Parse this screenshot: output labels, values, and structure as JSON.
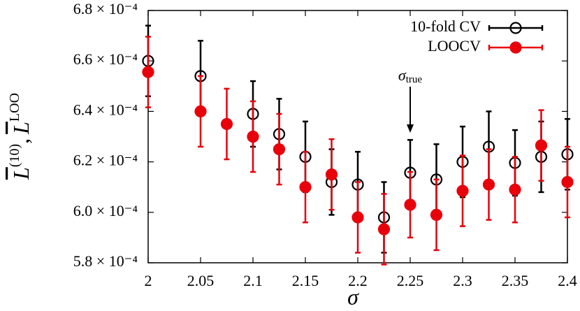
{
  "chart_data": {
    "type": "errorbar",
    "xlabel": "σ",
    "ylabel": {
      "first": "L",
      "first_sup": "(10)",
      "sep": ",",
      "second": "L",
      "second_sup": "LOO"
    },
    "xlim": [
      2,
      2.4
    ],
    "xticks": [
      2,
      2.05,
      2.1,
      2.15,
      2.2,
      2.25,
      2.3,
      2.35,
      2.4
    ],
    "ylim": [
      0.00058,
      0.00068
    ],
    "yticks": [
      {
        "value": 0.00058,
        "label": "5.8 × 10⁻⁴"
      },
      {
        "value": 0.0006,
        "label": "6.0 × 10⁻⁴"
      },
      {
        "value": 0.00062,
        "label": "6.2 × 10⁻⁴"
      },
      {
        "value": 0.00064,
        "label": "6.4 × 10⁻⁴"
      },
      {
        "value": 0.00066,
        "label": "6.6 × 10⁻⁴"
      },
      {
        "value": 0.00068,
        "label": "6.8 × 10⁻⁴"
      }
    ],
    "legend": "upper right",
    "annotation": {
      "text": "σ",
      "sub": "true",
      "x": 2.25
    },
    "series": [
      {
        "name": "10-fold CV",
        "color": "#000000",
        "marker": "open",
        "x": [
          2,
          2.05,
          2.1,
          2.125,
          2.15,
          2.175,
          2.2,
          2.225,
          2.25,
          2.275,
          2.3,
          2.325,
          2.35,
          2.375,
          2.4
        ],
        "values": [
          0.00066,
          0.000654,
          0.000639,
          0.000631,
          0.000622,
          0.000612,
          0.000611,
          0.000598,
          0.0006157,
          0.000613,
          0.00062,
          0.000626,
          0.0006196,
          0.000622,
          0.000623
        ],
        "errors": [
          1.4e-05,
          1.4e-05,
          1.3e-05,
          1.4e-05,
          1.4e-05,
          1.3e-05,
          1.3e-05,
          1.4e-05,
          1.3e-05,
          1.4e-05,
          1.4e-05,
          1.4e-05,
          1.3e-05,
          1.4e-05,
          1.4e-05
        ]
      },
      {
        "name": "LOOCV",
        "color": "#e8000b",
        "marker": "filled",
        "x": [
          2,
          2.05,
          2.075,
          2.1,
          2.125,
          2.15,
          2.175,
          2.2,
          2.225,
          2.25,
          2.275,
          2.3,
          2.325,
          2.35,
          2.375,
          2.4
        ],
        "values": [
          0.0006556,
          0.00064,
          0.000635,
          0.00063,
          0.000625,
          0.00061,
          0.000615,
          0.000598,
          0.0005933,
          0.000603,
          0.000599,
          0.0006085,
          0.000611,
          0.000609,
          0.0006265,
          0.000612
        ],
        "errors": [
          1.4e-05,
          1.4e-05,
          1.4e-05,
          1.4e-05,
          1.4e-05,
          1.4e-05,
          1.4e-05,
          1.4e-05,
          1.4e-05,
          1.3e-05,
          1.4e-05,
          1.4e-05,
          1.4e-05,
          1.3e-05,
          1.4e-05,
          1.4e-05
        ]
      }
    ]
  }
}
